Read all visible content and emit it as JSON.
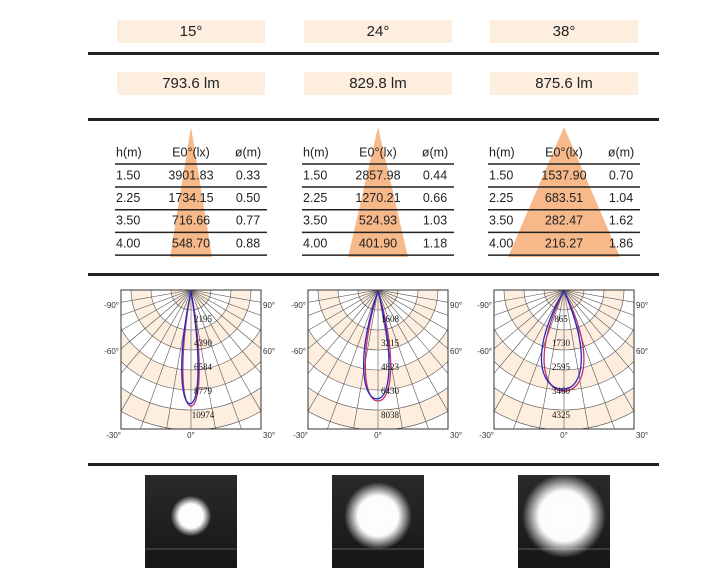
{
  "polar_axis_labels": [
    "-90°",
    "90°",
    "-60°",
    "60°",
    "-30°",
    "0°",
    "30°"
  ],
  "columns": [
    {
      "beam_angle": "15°",
      "luminous_flux": "793.6 lm",
      "table": {
        "headers": [
          "h(m)",
          "E0°(lx)",
          "ø(m)"
        ],
        "rows": [
          [
            "1.50",
            "3901.83",
            "0.33"
          ],
          [
            "2.25",
            "1734.15",
            "0.50"
          ],
          [
            "3.50",
            "716.66",
            "0.77"
          ],
          [
            "4.00",
            "548.70",
            "0.88"
          ]
        ]
      },
      "polar_values": [
        "2195",
        "4390",
        "6584",
        "8779",
        "10974"
      ]
    },
    {
      "beam_angle": "24°",
      "luminous_flux": "829.8 lm",
      "table": {
        "headers": [
          "h(m)",
          "E0°(lx)",
          "ø(m)"
        ],
        "rows": [
          [
            "1.50",
            "2857.98",
            "0.44"
          ],
          [
            "2.25",
            "1270.21",
            "0.66"
          ],
          [
            "3.50",
            "524.93",
            "1.03"
          ],
          [
            "4.00",
            "401.90",
            "1.18"
          ]
        ]
      },
      "polar_values": [
        "1608",
        "3215",
        "4823",
        "6430",
        "8038"
      ]
    },
    {
      "beam_angle": "38°",
      "luminous_flux": "875.6 lm",
      "table": {
        "headers": [
          "h(m)",
          "E0°(lx)",
          "ø(m)"
        ],
        "rows": [
          [
            "1.50",
            "1537.90",
            "0.70"
          ],
          [
            "2.25",
            "683.51",
            "1.04"
          ],
          [
            "3.50",
            "282.47",
            "1.62"
          ],
          [
            "4.00",
            "216.27",
            "1.86"
          ]
        ]
      },
      "polar_values": [
        "865",
        "1730",
        "2595",
        "3460",
        "4325"
      ]
    }
  ]
}
